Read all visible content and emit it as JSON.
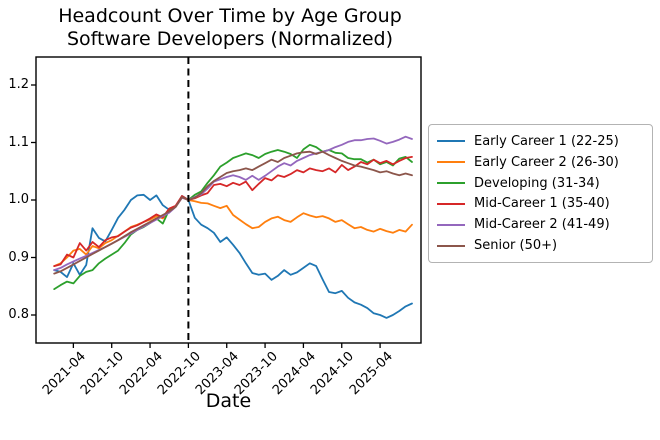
{
  "figure": {
    "title_line1": "Headcount Over Time by Age Group",
    "title_line2": "Software Developers (Normalized)",
    "xlabel": "Date"
  },
  "chart_data": {
    "type": "line",
    "title": "Headcount Over Time by Age Group — Software Developers (Normalized)",
    "xlabel": "Date",
    "ylabel": "",
    "grid": false,
    "legend_position": "right-of-axes",
    "ylim": [
      0.75,
      1.25
    ],
    "yticks": [
      0.8,
      0.9,
      1.0,
      1.1,
      1.2
    ],
    "xtick_labels": [
      "2021-04",
      "2021-10",
      "2022-04",
      "2022-10",
      "2023-04",
      "2023-10",
      "2024-04",
      "2024-10",
      "2025-04"
    ],
    "xtick_indices": [
      3,
      9,
      15,
      21,
      27,
      33,
      39,
      45,
      51
    ],
    "vline": {
      "x": "2022-10",
      "index": 21,
      "style": "dashed",
      "color": "#000000"
    },
    "categories": [
      "2021-01",
      "2021-02",
      "2021-03",
      "2021-04",
      "2021-05",
      "2021-06",
      "2021-07",
      "2021-08",
      "2021-09",
      "2021-10",
      "2021-11",
      "2021-12",
      "2022-01",
      "2022-02",
      "2022-03",
      "2022-04",
      "2022-05",
      "2022-06",
      "2022-07",
      "2022-08",
      "2022-09",
      "2022-10",
      "2022-11",
      "2022-12",
      "2023-01",
      "2023-02",
      "2023-03",
      "2023-04",
      "2023-05",
      "2023-06",
      "2023-07",
      "2023-08",
      "2023-09",
      "2023-10",
      "2023-11",
      "2023-12",
      "2024-01",
      "2024-02",
      "2024-03",
      "2024-04",
      "2024-05",
      "2024-06",
      "2024-07",
      "2024-08",
      "2024-09",
      "2024-10",
      "2024-11",
      "2024-12",
      "2025-01",
      "2025-02",
      "2025-03",
      "2025-04",
      "2025-05",
      "2025-06",
      "2025-07",
      "2025-08",
      "2025-09"
    ],
    "series": [
      {
        "name": "Early Career 1 (22-25)",
        "color": "#1f77b4",
        "values": [
          0.878,
          0.875,
          0.866,
          0.89,
          0.87,
          0.887,
          0.951,
          0.934,
          0.928,
          0.948,
          0.969,
          0.983,
          1.0,
          1.008,
          1.009,
          1.0,
          1.008,
          0.991,
          0.983,
          0.988,
          1.007,
          1.0,
          0.969,
          0.957,
          0.951,
          0.943,
          0.927,
          0.935,
          0.922,
          0.908,
          0.89,
          0.873,
          0.87,
          0.872,
          0.861,
          0.868,
          0.878,
          0.87,
          0.874,
          0.882,
          0.89,
          0.885,
          0.862,
          0.84,
          0.838,
          0.842,
          0.83,
          0.822,
          0.818,
          0.812,
          0.803,
          0.8,
          0.795,
          0.8,
          0.807,
          0.815,
          0.82
        ]
      },
      {
        "name": "Early Career 2 (26-30)",
        "color": "#ff7f0e",
        "values": [
          0.885,
          0.89,
          0.9,
          0.912,
          0.915,
          0.905,
          0.92,
          0.916,
          0.925,
          0.93,
          0.938,
          0.945,
          0.953,
          0.957,
          0.962,
          0.966,
          0.972,
          0.968,
          0.98,
          0.988,
          1.004,
          1.0,
          0.998,
          0.995,
          0.994,
          0.99,
          0.986,
          0.99,
          0.974,
          0.966,
          0.958,
          0.951,
          0.953,
          0.962,
          0.968,
          0.971,
          0.965,
          0.962,
          0.97,
          0.977,
          0.973,
          0.97,
          0.972,
          0.968,
          0.962,
          0.965,
          0.958,
          0.951,
          0.953,
          0.948,
          0.945,
          0.95,
          0.946,
          0.943,
          0.948,
          0.945,
          0.957
        ]
      },
      {
        "name": "Developing (31-34)",
        "color": "#2ca02c",
        "values": [
          0.845,
          0.852,
          0.858,
          0.855,
          0.868,
          0.875,
          0.878,
          0.89,
          0.898,
          0.905,
          0.912,
          0.925,
          0.94,
          0.948,
          0.953,
          0.96,
          0.968,
          0.959,
          0.983,
          0.988,
          1.005,
          1.0,
          1.009,
          1.015,
          1.03,
          1.043,
          1.058,
          1.065,
          1.073,
          1.077,
          1.081,
          1.078,
          1.073,
          1.08,
          1.084,
          1.087,
          1.084,
          1.08,
          1.073,
          1.088,
          1.096,
          1.092,
          1.084,
          1.087,
          1.082,
          1.081,
          1.073,
          1.071,
          1.071,
          1.065,
          1.07,
          1.062,
          1.066,
          1.06,
          1.072,
          1.075,
          1.066
        ]
      },
      {
        "name": "Mid-Career 1 (35-40)",
        "color": "#d62728",
        "values": [
          0.885,
          0.888,
          0.905,
          0.9,
          0.925,
          0.912,
          0.927,
          0.918,
          0.93,
          0.935,
          0.937,
          0.945,
          0.952,
          0.956,
          0.962,
          0.968,
          0.975,
          0.97,
          0.985,
          0.99,
          1.007,
          1.0,
          1.003,
          1.008,
          1.012,
          1.026,
          1.028,
          1.024,
          1.03,
          1.026,
          1.032,
          1.017,
          1.028,
          1.038,
          1.034,
          1.043,
          1.04,
          1.045,
          1.052,
          1.048,
          1.055,
          1.052,
          1.05,
          1.055,
          1.048,
          1.061,
          1.052,
          1.058,
          1.066,
          1.062,
          1.07,
          1.064,
          1.068,
          1.062,
          1.068,
          1.073,
          1.075
        ]
      },
      {
        "name": "Mid-Career 2 (41-49)",
        "color": "#9467bd",
        "values": [
          0.878,
          0.882,
          0.888,
          0.893,
          0.898,
          0.903,
          0.908,
          0.913,
          0.918,
          0.924,
          0.93,
          0.936,
          0.942,
          0.948,
          0.954,
          0.96,
          0.966,
          0.972,
          0.978,
          0.988,
          1.004,
          1.0,
          1.005,
          1.01,
          1.02,
          1.032,
          1.036,
          1.04,
          1.043,
          1.04,
          1.035,
          1.042,
          1.035,
          1.042,
          1.05,
          1.058,
          1.064,
          1.06,
          1.068,
          1.073,
          1.078,
          1.081,
          1.084,
          1.087,
          1.092,
          1.096,
          1.101,
          1.104,
          1.104,
          1.106,
          1.107,
          1.103,
          1.098,
          1.101,
          1.105,
          1.11,
          1.106
        ]
      },
      {
        "name": "Senior (50+)",
        "color": "#8c564b",
        "values": [
          0.872,
          0.876,
          0.882,
          0.888,
          0.894,
          0.9,
          0.906,
          0.912,
          0.918,
          0.924,
          0.93,
          0.937,
          0.944,
          0.95,
          0.956,
          0.962,
          0.968,
          0.974,
          0.98,
          0.988,
          1.005,
          1.0,
          1.004,
          1.012,
          1.024,
          1.033,
          1.04,
          1.047,
          1.05,
          1.052,
          1.055,
          1.052,
          1.058,
          1.064,
          1.07,
          1.066,
          1.073,
          1.077,
          1.081,
          1.083,
          1.084,
          1.08,
          1.084,
          1.078,
          1.073,
          1.068,
          1.064,
          1.06,
          1.058,
          1.055,
          1.052,
          1.048,
          1.05,
          1.046,
          1.043,
          1.046,
          1.043
        ]
      }
    ]
  }
}
